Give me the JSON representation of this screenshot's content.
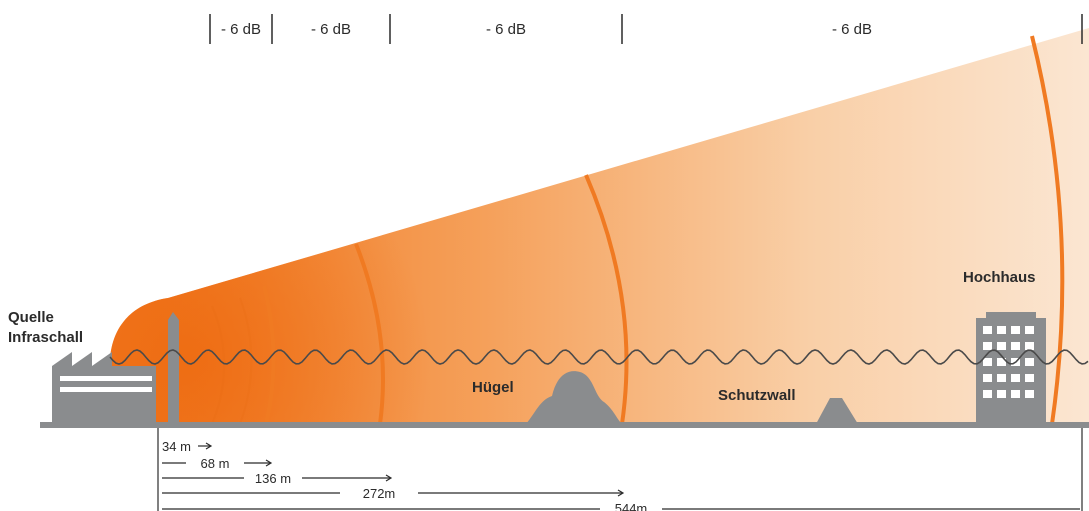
{
  "header": {
    "segments": [
      {
        "label": "- 6 dB"
      },
      {
        "label": "- 6 dB"
      },
      {
        "label": "- 6 dB"
      },
      {
        "label": "- 6 dB"
      }
    ]
  },
  "labels": {
    "source_line1": "Quelle",
    "source_line2": "Infraschall",
    "hill": "Hügel",
    "wall": "Schutzwall",
    "highrise": "Hochhaus"
  },
  "distances": [
    {
      "label": "34 m"
    },
    {
      "label": "68 m"
    },
    {
      "label": "136 m"
    },
    {
      "label": "272m"
    },
    {
      "label": "544m"
    }
  ],
  "colors": {
    "cone_near": "#f07a22",
    "cone_far": "#fbe3cc",
    "wavefront": "#f07a22",
    "ground": "#8a8c8e",
    "building": "#8a8c8e",
    "text": "#2b2b2b",
    "wave_line": "#4a4a4a"
  },
  "icons": {
    "source": "factory-icon",
    "hill": "hill-shape",
    "wall": "embankment-shape",
    "highrise": "highrise-building-icon"
  }
}
